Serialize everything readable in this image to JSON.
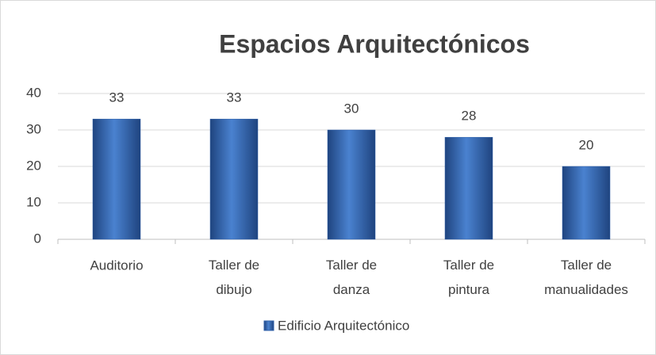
{
  "chart_data": {
    "type": "bar",
    "title": "Espacios Arquitectónicos",
    "categories": [
      "Auditorio",
      "Taller de dibujo",
      "Taller de danza",
      "Taller de pintura",
      "Taller de manualidades"
    ],
    "series": [
      {
        "name": "Edificio Arquitectónico",
        "color": "#2e5fa8",
        "values": [
          33,
          33,
          30,
          28,
          20
        ]
      }
    ],
    "ylim": [
      0,
      40
    ],
    "yticks": [
      0,
      10,
      20,
      30,
      40
    ],
    "grid": true,
    "legend": "bottom"
  }
}
